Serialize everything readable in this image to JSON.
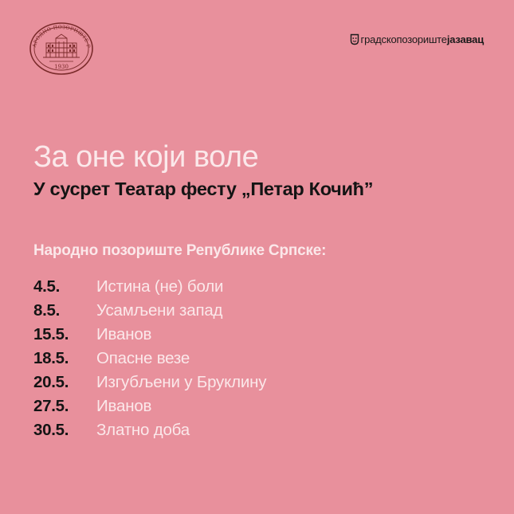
{
  "header": {
    "emblem": {
      "icon": "theatre-seal-icon",
      "ring_text": "НАРОДНО ПОЗОРИШТЕ РС",
      "year": "1930"
    },
    "brand": {
      "icon": "theatre-mask-icon",
      "light_text": "градскопозориште",
      "bold_text": "јазавац"
    }
  },
  "main": {
    "headline": "За оне који воле",
    "subheadline": "У сусрет Театар фесту „Петар Кочић”",
    "section_title": "Народно позориште Републике Српске:",
    "schedule": [
      {
        "date": "4.5.",
        "title": "Истина (не) боли"
      },
      {
        "date": "8.5.",
        "title": "Усамљени запад"
      },
      {
        "date": "15.5.",
        "title": "Иванов"
      },
      {
        "date": "18.5.",
        "title": "Опасне везе"
      },
      {
        "date": "20.5.",
        "title": "Изгубљени у Бруклину"
      },
      {
        "date": "27.5.",
        "title": "Иванов"
      },
      {
        "date": "30.5.",
        "title": "Златно доба"
      }
    ]
  },
  "colors": {
    "background": "#e8909c",
    "light_text": "#fbe8ea",
    "dark_text": "#141414",
    "seal": "#7a2a2a"
  }
}
